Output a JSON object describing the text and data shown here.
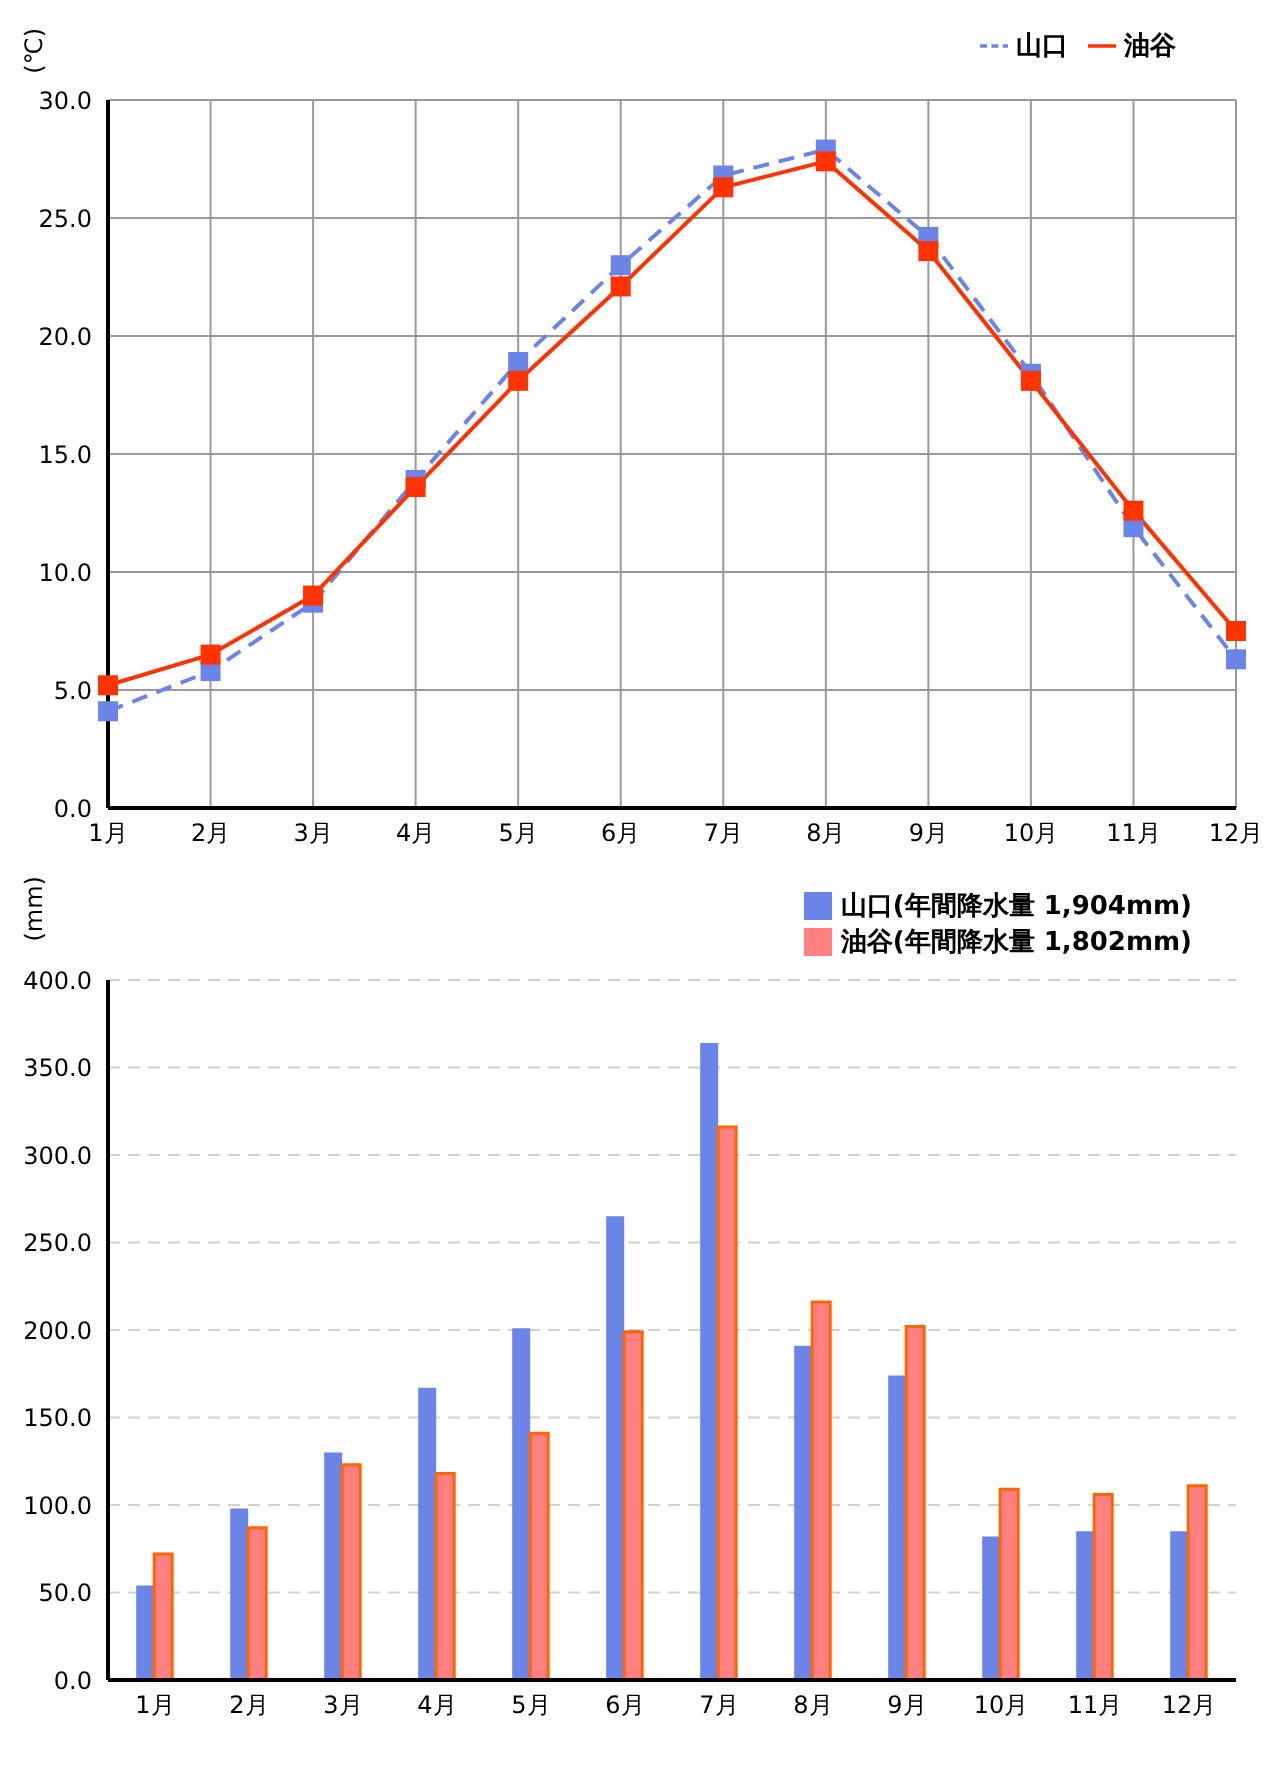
{
  "chart_data": [
    {
      "type": "line",
      "ylabel": "(℃)",
      "categories": [
        "1月",
        "2月",
        "3月",
        "4月",
        "5月",
        "6月",
        "7月",
        "8月",
        "9月",
        "10月",
        "11月",
        "12月"
      ],
      "series": [
        {
          "name": "山口",
          "color": "#6b84e8",
          "line_style": "dashed",
          "values": [
            4.1,
            5.8,
            8.7,
            13.9,
            18.9,
            23.0,
            26.8,
            27.9,
            24.2,
            18.4,
            11.9,
            6.3
          ]
        },
        {
          "name": "油谷",
          "color": "#ff3300",
          "line_style": "solid",
          "values": [
            5.2,
            6.5,
            9.0,
            13.6,
            18.1,
            22.1,
            26.3,
            27.4,
            23.6,
            18.1,
            12.6,
            7.5
          ]
        }
      ],
      "ylim": [
        0,
        30
      ],
      "yticks": [
        {
          "value": 0,
          "label": "0.0"
        },
        {
          "value": 5,
          "label": "5.0"
        },
        {
          "value": 10,
          "label": "10.0"
        },
        {
          "value": 15,
          "label": "15.0"
        },
        {
          "value": 20,
          "label": "20.0"
        },
        {
          "value": 25,
          "label": "25.0"
        },
        {
          "value": 30,
          "label": "30.0"
        }
      ],
      "grid": true,
      "legend": "top right",
      "marker": "square"
    },
    {
      "type": "bar",
      "ylabel": "(mm)",
      "categories": [
        "1月",
        "2月",
        "3月",
        "4月",
        "5月",
        "6月",
        "7月",
        "8月",
        "9月",
        "10月",
        "11月",
        "12月"
      ],
      "series": [
        {
          "name": "山口(年間降水量 1,904mm)",
          "color": "#6b84e8",
          "values": [
            54,
            98,
            130,
            167,
            201,
            265,
            364,
            191,
            174,
            82,
            85,
            85
          ]
        },
        {
          "name": "油谷(年間降水量 1,802mm)",
          "color": "#ff8080",
          "values": [
            72,
            87,
            123,
            118,
            141,
            199,
            316,
            216,
            202,
            109,
            106,
            111
          ]
        }
      ],
      "ylim": [
        0,
        400
      ],
      "yticks": [
        {
          "value": 0,
          "label": "0.0"
        },
        {
          "value": 50,
          "label": "50.0"
        },
        {
          "value": 100,
          "label": "100.0"
        },
        {
          "value": 150,
          "label": "150.0"
        },
        {
          "value": 200,
          "label": "200.0"
        },
        {
          "value": 250,
          "label": "250.0"
        },
        {
          "value": 300,
          "label": "300.0"
        },
        {
          "value": 350,
          "label": "350.0"
        },
        {
          "value": 400,
          "label": "400.0"
        }
      ],
      "grid": "y",
      "legend": "top right"
    }
  ]
}
